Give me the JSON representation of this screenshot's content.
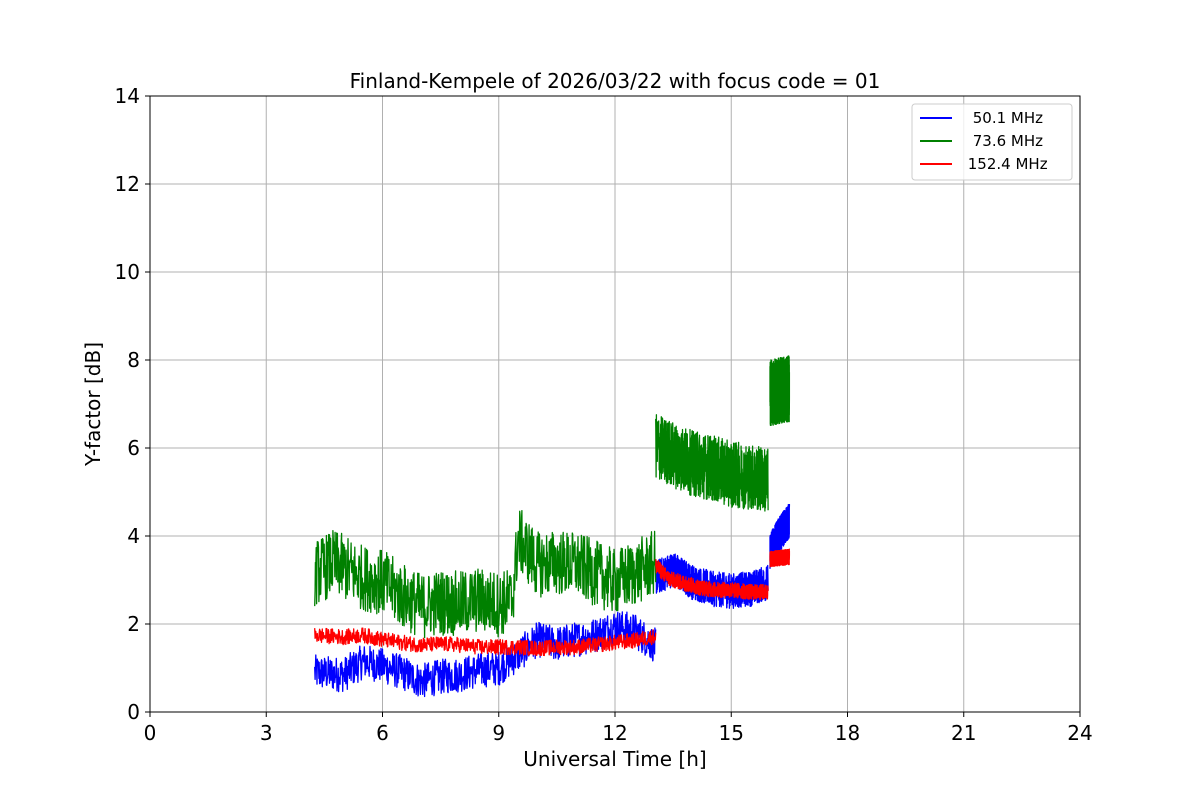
{
  "chart_data": {
    "type": "line",
    "title": "Finland-Kempele of 2026/03/22 with focus code = 01",
    "xlabel": "Universal Time [h]",
    "ylabel": "Y-factor [dB]",
    "xlim": [
      0,
      24
    ],
    "ylim": [
      0,
      14
    ],
    "xticks": [
      0,
      3,
      6,
      9,
      12,
      15,
      18,
      21,
      24
    ],
    "xtick_labels": [
      "0",
      "3",
      "6",
      "9",
      "12",
      "15",
      "18",
      "21",
      "24"
    ],
    "yticks": [
      0,
      2,
      4,
      6,
      8,
      10,
      12,
      14
    ],
    "ytick_labels": [
      "0",
      "2",
      "4",
      "6",
      "8",
      "10",
      "12",
      "14"
    ],
    "grid": true,
    "legend_position": "top-right",
    "series": [
      {
        "name": "50.1 MHz",
        "label": " 50.1 MHz",
        "color": "#0000ff",
        "segments": [
          [
            [
              4.25,
              0.85
            ],
            [
              5.0,
              0.8
            ],
            [
              5.5,
              1.1
            ],
            [
              6.0,
              1.0
            ],
            [
              6.5,
              0.85
            ],
            [
              7.0,
              0.65
            ],
            [
              7.5,
              0.75
            ],
            [
              8.0,
              0.8
            ],
            [
              8.5,
              0.9
            ],
            [
              9.0,
              0.95
            ],
            [
              9.5,
              1.25
            ],
            [
              10.0,
              1.6
            ],
            [
              10.5,
              1.5
            ],
            [
              11.0,
              1.6
            ],
            [
              11.5,
              1.7
            ],
            [
              12.0,
              1.9
            ],
            [
              12.5,
              1.8
            ],
            [
              13.05,
              1.45
            ]
          ],
          [
            [
              13.05,
              3.0
            ],
            [
              13.5,
              3.2
            ],
            [
              14.0,
              2.9
            ],
            [
              14.5,
              2.75
            ],
            [
              15.0,
              2.7
            ],
            [
              15.5,
              2.75
            ],
            [
              15.95,
              2.9
            ]
          ],
          [
            [
              16.0,
              3.6
            ],
            [
              16.25,
              4.0
            ],
            [
              16.5,
              4.3
            ]
          ]
        ],
        "envelope": [
          0.35,
          0.45
        ]
      },
      {
        "name": "73.6 MHz",
        "label": " 73.6 MHz",
        "color": "#008000",
        "segments": [
          [
            [
              4.25,
              3.1
            ],
            [
              4.75,
              3.35
            ],
            [
              5.5,
              3.0
            ],
            [
              6.0,
              2.9
            ],
            [
              6.5,
              2.6
            ],
            [
              7.0,
              2.35
            ],
            [
              7.5,
              2.45
            ],
            [
              8.0,
              2.4
            ],
            [
              8.5,
              2.5
            ],
            [
              9.0,
              2.4
            ],
            [
              9.35,
              2.5
            ],
            [
              9.5,
              3.9
            ],
            [
              10.0,
              3.3
            ],
            [
              10.5,
              3.35
            ],
            [
              11.0,
              3.3
            ],
            [
              11.5,
              3.1
            ],
            [
              12.0,
              2.9
            ],
            [
              12.5,
              3.1
            ],
            [
              13.05,
              3.35
            ]
          ],
          [
            [
              13.05,
              6.0
            ],
            [
              13.5,
              5.8
            ],
            [
              14.0,
              5.6
            ],
            [
              14.5,
              5.5
            ],
            [
              15.0,
              5.35
            ],
            [
              15.5,
              5.3
            ],
            [
              15.95,
              5.2
            ]
          ],
          [
            [
              16.0,
              7.2
            ],
            [
              16.5,
              7.3
            ]
          ]
        ],
        "envelope": [
          0.7,
          0.8
        ]
      },
      {
        "name": "152.4 MHz",
        "label": " 152.4 MHz",
        "color": "#ff0000",
        "segments": [
          [
            [
              4.25,
              1.72
            ],
            [
              5.0,
              1.68
            ],
            [
              5.5,
              1.72
            ],
            [
              6.0,
              1.62
            ],
            [
              6.5,
              1.55
            ],
            [
              7.0,
              1.5
            ],
            [
              7.5,
              1.52
            ],
            [
              8.0,
              1.5
            ],
            [
              8.5,
              1.45
            ],
            [
              9.0,
              1.45
            ],
            [
              9.5,
              1.45
            ],
            [
              10.0,
              1.42
            ],
            [
              10.5,
              1.45
            ],
            [
              11.0,
              1.45
            ],
            [
              11.5,
              1.5
            ],
            [
              12.0,
              1.55
            ],
            [
              12.5,
              1.6
            ],
            [
              13.05,
              1.7
            ]
          ],
          [
            [
              13.05,
              3.3
            ],
            [
              13.4,
              3.0
            ],
            [
              13.8,
              2.9
            ],
            [
              14.2,
              2.8
            ],
            [
              14.6,
              2.75
            ],
            [
              15.0,
              2.75
            ],
            [
              15.5,
              2.7
            ],
            [
              15.95,
              2.7
            ]
          ],
          [
            [
              16.0,
              3.45
            ],
            [
              16.5,
              3.5
            ]
          ]
        ],
        "envelope": [
          0.15,
          0.2
        ]
      }
    ]
  }
}
